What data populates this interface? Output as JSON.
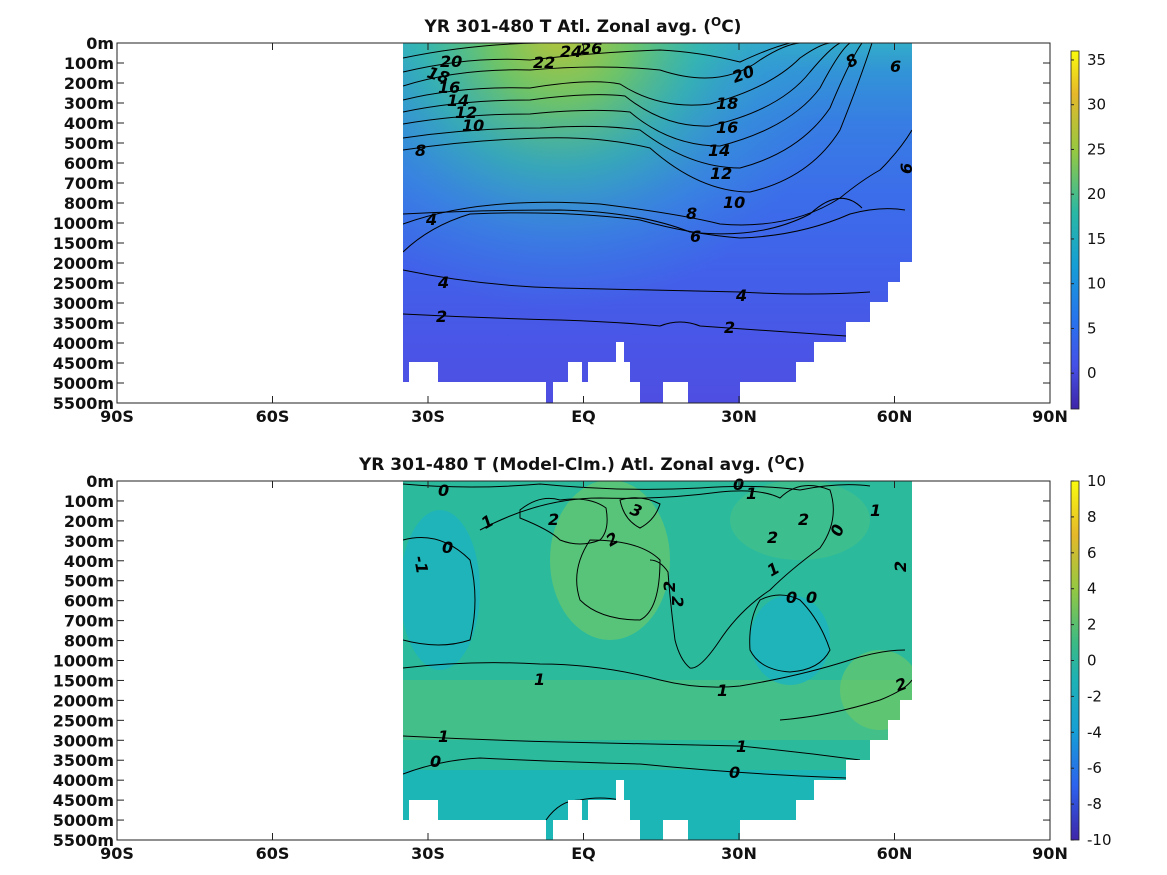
{
  "chart_data": [
    {
      "type": "heatmap",
      "title": "YR 301-480 T Atl. Zonal avg. (",
      "title_sup": "O",
      "title_end": "C)",
      "x_ticks": [
        "90S",
        "60S",
        "30S",
        "EQ",
        "30N",
        "60N",
        "90N"
      ],
      "x_values": [
        -90,
        -60,
        -30,
        0,
        30,
        60,
        90
      ],
      "depth_ticks": [
        "0m",
        "100m",
        "200m",
        "300m",
        "400m",
        "500m",
        "600m",
        "700m",
        "800m",
        "1000m",
        "1500m",
        "2000m",
        "2500m",
        "3000m",
        "3500m",
        "4000m",
        "4500m",
        "5000m",
        "5500m"
      ],
      "xlim": [
        -90,
        90
      ],
      "colorbar": {
        "ticks": [
          "35",
          "30",
          "25",
          "20",
          "15",
          "10",
          "5",
          "0"
        ],
        "values": [
          35,
          30,
          25,
          20,
          15,
          10,
          5,
          0
        ],
        "range": [
          -4,
          36
        ]
      },
      "contour_labels": [
        "20",
        "18",
        "16",
        "14",
        "12",
        "10",
        "8",
        "4",
        "22",
        "24",
        "26",
        "18",
        "20",
        "16",
        "14",
        "12",
        "10",
        "8",
        "6",
        "8",
        "6",
        "6",
        "4",
        "4",
        "2",
        "2"
      ]
    },
    {
      "type": "heatmap",
      "title": "YR 301-480 T (Model-Clm.) Atl. Zonal avg. (",
      "title_sup": "O",
      "title_end": "C)",
      "x_ticks": [
        "90S",
        "60S",
        "30S",
        "EQ",
        "30N",
        "60N",
        "90N"
      ],
      "x_values": [
        -90,
        -60,
        -30,
        0,
        30,
        60,
        90
      ],
      "depth_ticks": [
        "0m",
        "100m",
        "200m",
        "300m",
        "400m",
        "500m",
        "600m",
        "700m",
        "800m",
        "1000m",
        "1500m",
        "2000m",
        "2500m",
        "3000m",
        "3500m",
        "4000m",
        "4500m",
        "5000m",
        "5500m"
      ],
      "xlim": [
        -90,
        90
      ],
      "colorbar": {
        "ticks": [
          "10",
          "8",
          "6",
          "4",
          "2",
          "0",
          "-2",
          "-4",
          "-6",
          "-8",
          "-10"
        ],
        "values": [
          10,
          8,
          6,
          4,
          2,
          0,
          -2,
          -4,
          -6,
          -8,
          -10
        ],
        "range": [
          -10,
          10
        ]
      },
      "contour_labels": [
        "0",
        "0",
        "1",
        "1",
        "2",
        "3",
        "2",
        "2",
        "2",
        "0",
        "1",
        "0",
        "-1",
        "1",
        "2",
        "2",
        "0",
        "0",
        "1",
        "1",
        "2",
        "1",
        "1",
        "0",
        "0"
      ]
    }
  ]
}
